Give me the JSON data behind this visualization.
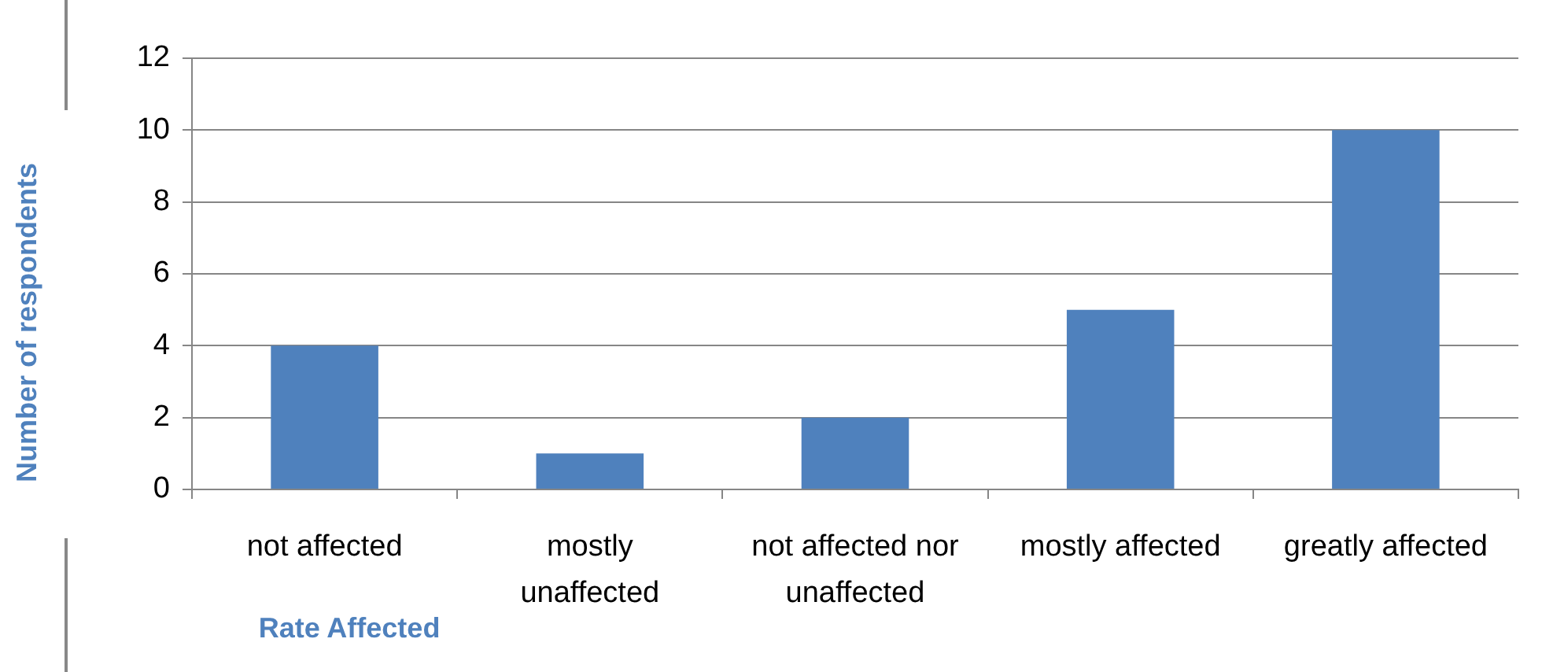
{
  "chart_data": {
    "type": "bar",
    "xlabel": "Rate Affected",
    "ylabel": "Number of respondents",
    "categories": [
      "not affected",
      "mostly unaffected",
      "not affected nor unaffected",
      "mostly affected",
      "greatly affected"
    ],
    "values": [
      4,
      1,
      2,
      5,
      10
    ],
    "color": "#4f81bd",
    "ylim": [
      0,
      12
    ],
    "yticks": [
      0,
      2,
      4,
      6,
      8,
      10,
      12
    ],
    "grid": "y",
    "legend": false
  }
}
